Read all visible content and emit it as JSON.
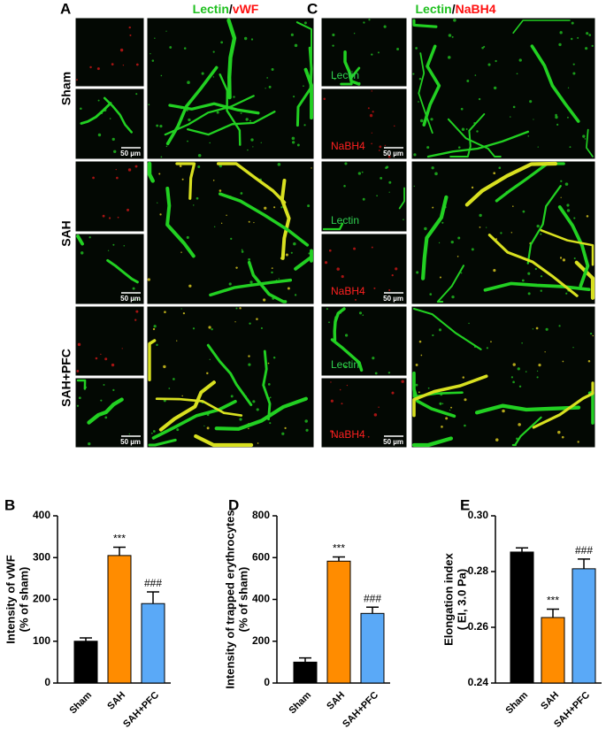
{
  "images": {
    "panel_a": {
      "label": "A",
      "title": [
        "Lectin",
        "/",
        "vWF"
      ],
      "rows": [
        "Sham",
        "SAH",
        "SAH+PFC"
      ],
      "scale_bar": "50 µm"
    },
    "panel_c": {
      "label": "C",
      "title": [
        "Lectin",
        "/",
        "NaBH4"
      ],
      "channels": [
        "Lectin",
        "NaBH4"
      ],
      "scale_bar": "50 µm"
    }
  },
  "chart_data": [
    {
      "type": "bar",
      "panel_label": "B",
      "ylabel": [
        "Intensity of vWF",
        "(% of sham)"
      ],
      "categories": [
        "Sham",
        "SAH",
        "SAH+PFC"
      ],
      "values": [
        100,
        305,
        190
      ],
      "errors": [
        8,
        20,
        28
      ],
      "colors": [
        "#000000",
        "#ff8c00",
        "#5aa9f7"
      ],
      "value_annotations": [
        null,
        "***",
        "###"
      ],
      "ylim": [
        0,
        400
      ],
      "yticks": [
        0,
        100,
        200,
        300,
        400
      ]
    },
    {
      "type": "bar",
      "panel_label": "D",
      "ylabel": [
        "Intensity of trapped erythrocytes",
        "(% of sham)"
      ],
      "categories": [
        "Sham",
        "SAH",
        "SAH+PFC"
      ],
      "values": [
        100,
        583,
        333
      ],
      "errors": [
        20,
        20,
        30
      ],
      "colors": [
        "#000000",
        "#ff8c00",
        "#5aa9f7"
      ],
      "value_annotations": [
        null,
        "***",
        "###"
      ],
      "ylim": [
        0,
        800
      ],
      "yticks": [
        0,
        200,
        400,
        600,
        800
      ]
    },
    {
      "type": "bar",
      "panel_label": "E",
      "ylabel": [
        "Elongation index",
        "( EI, 3.0 Pa)"
      ],
      "categories": [
        "Sham",
        "SAH",
        "SAH+PFC"
      ],
      "values": [
        0.287,
        0.2635,
        0.281
      ],
      "errors": [
        0.0015,
        0.003,
        0.0035
      ],
      "colors": [
        "#000000",
        "#ff8c00",
        "#5aa9f7"
      ],
      "value_annotations": [
        null,
        "***",
        "###"
      ],
      "ylim": [
        0.24,
        0.3
      ],
      "yticks": [
        0.24,
        0.26,
        0.28,
        {
          "value": 0.3,
          "label": "0.30"
        }
      ]
    }
  ]
}
